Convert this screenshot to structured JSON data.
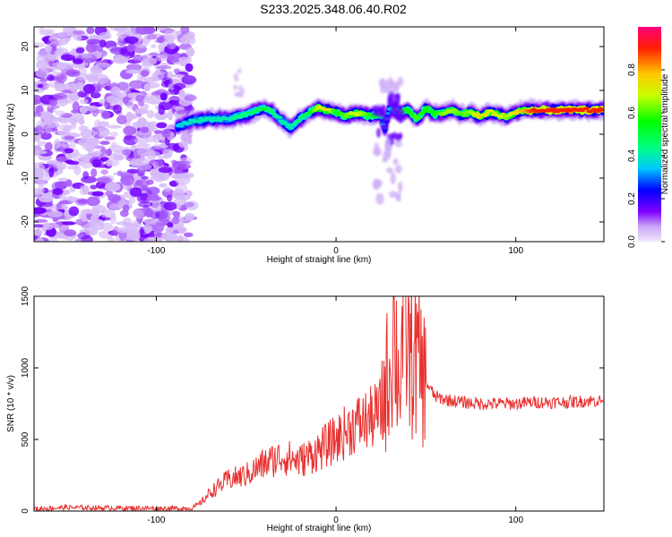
{
  "title": "S233.2025.348.06.40.R02",
  "colors": {
    "line": "#e8312f",
    "axis": "#000000",
    "speckle": "#8a2be2"
  },
  "colorbar": {
    "label": "Normalized spectral amplitude",
    "ticks": [
      0.0,
      0.2,
      0.4,
      0.6,
      0.8
    ],
    "tick_labels": [
      "0.0",
      "0.2",
      "0.4",
      "0.6",
      "0.8"
    ],
    "range": [
      0,
      1
    ]
  },
  "chart_data": [
    {
      "type": "heatmap",
      "xlabel": "Height of straight line (km)",
      "ylabel": "Frequency (Hz)",
      "xlim": [
        -168,
        149
      ],
      "ylim": [
        -24.5,
        24.5
      ],
      "xticks": [
        -100,
        0,
        100
      ],
      "xtick_labels": [
        "-100",
        "0",
        "100"
      ],
      "yticks": [
        -20,
        -10,
        0,
        10,
        20
      ],
      "ytick_labels": [
        "-20",
        "-10",
        "0",
        "10",
        "20"
      ],
      "noise_region_x": [
        -168,
        -80
      ],
      "ridge": {
        "x": [
          -88,
          -80,
          -70,
          -60,
          -50,
          -40,
          -35,
          -30,
          -25,
          -20,
          -15,
          -10,
          -5,
          0,
          5,
          10,
          15,
          20,
          25,
          27,
          30,
          35,
          40,
          45,
          50,
          55,
          60,
          65,
          70,
          75,
          80,
          85,
          90,
          95,
          100,
          105,
          110,
          120,
          130,
          140,
          149
        ],
        "y": [
          2.0,
          3.0,
          3.5,
          3.5,
          4.5,
          6.0,
          5.0,
          3.0,
          1.5,
          3.5,
          5.0,
          6.0,
          5.5,
          5.0,
          4.0,
          4.8,
          4.5,
          4.2,
          4.5,
          1.5,
          6.0,
          5.0,
          5.5,
          3.5,
          6.0,
          4.5,
          5.0,
          5.5,
          4.5,
          5.0,
          4.0,
          5.0,
          4.5,
          4.0,
          5.0,
          5.5,
          5.5,
          5.5,
          5.5,
          5.5,
          5.5
        ],
        "amplitude": [
          0.35,
          0.4,
          0.4,
          0.4,
          0.45,
          0.5,
          0.45,
          0.4,
          0.4,
          0.45,
          0.5,
          0.7,
          0.75,
          0.55,
          0.6,
          0.7,
          0.65,
          0.55,
          0.5,
          0.3,
          0.35,
          0.5,
          0.55,
          0.6,
          0.55,
          0.55,
          0.65,
          0.65,
          0.6,
          0.65,
          0.75,
          0.7,
          0.7,
          0.65,
          0.75,
          0.8,
          0.9,
          0.9,
          0.9,
          0.9,
          0.9
        ]
      }
    },
    {
      "type": "line",
      "xlabel": "Height of straight line (km)",
      "ylabel": "SNR (10 * v/v)",
      "xlim": [
        -168,
        149
      ],
      "ylim": [
        0,
        1500
      ],
      "xticks": [
        -100,
        0,
        100
      ],
      "xtick_labels": [
        "-100",
        "0",
        "100"
      ],
      "yticks": [
        0,
        500,
        1000,
        1500
      ],
      "ytick_labels": [
        "0",
        "500",
        "1000",
        "1500"
      ],
      "series": [
        {
          "x": [
            -168,
            -150,
            -130,
            -110,
            -90,
            -80,
            -75,
            -70,
            -60,
            -50,
            -40,
            -30,
            -20,
            -10,
            0,
            10,
            20,
            25,
            28,
            30,
            32,
            35,
            38,
            40,
            45,
            50,
            55,
            60,
            70,
            80,
            90,
            100,
            110,
            120,
            130,
            140,
            149
          ],
          "y": [
            15,
            25,
            22,
            20,
            18,
            20,
            60,
            130,
            220,
            250,
            330,
            380,
            350,
            420,
            500,
            600,
            650,
            700,
            900,
            1000,
            1300,
            900,
            1400,
            1100,
            1050,
            900,
            800,
            780,
            760,
            750,
            750,
            750,
            760,
            760,
            760,
            770,
            770
          ]
        }
      ]
    }
  ]
}
